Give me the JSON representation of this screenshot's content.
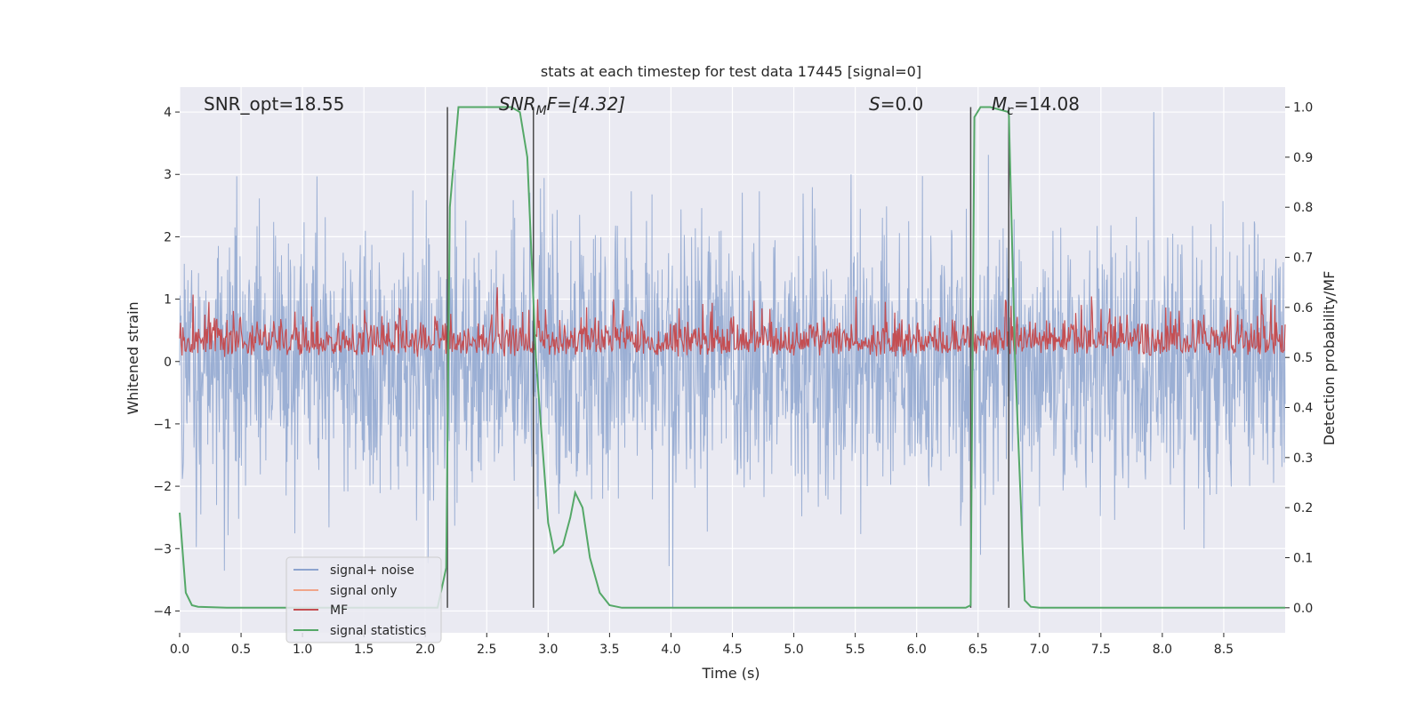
{
  "chart_data": {
    "type": "line",
    "title": "stats at each timestep for test data 17445 [signal=0]",
    "xlabel": "Time (s)",
    "ylabel_left": "Whitened strain",
    "ylabel_right": "Detection probability/MF",
    "xlim": [
      0.0,
      9.0
    ],
    "ylim_left": [
      -4.35,
      4.4
    ],
    "ylim_right": [
      -0.05,
      1.04
    ],
    "x_ticks": [
      0.0,
      0.5,
      1.0,
      1.5,
      2.0,
      2.5,
      3.0,
      3.5,
      4.0,
      4.5,
      5.0,
      5.5,
      6.0,
      6.5,
      7.0,
      7.5,
      8.0,
      8.5
    ],
    "x_tick_labels": [
      "0.0",
      "0.5",
      "1.0",
      "1.5",
      "2.0",
      "2.5",
      "3.0",
      "3.5",
      "4.0",
      "4.5",
      "5.0",
      "5.5",
      "6.0",
      "6.5",
      "7.0",
      "7.5",
      "8.0",
      "8.5"
    ],
    "y_left_ticks": [
      -4,
      -3,
      -2,
      -1,
      0,
      1,
      2,
      3,
      4
    ],
    "y_left_tick_labels": [
      "−4",
      "−3",
      "−2",
      "−1",
      "0",
      "1",
      "2",
      "3",
      "4"
    ],
    "y_right_ticks": [
      0.0,
      0.1,
      0.2,
      0.3,
      0.4,
      0.5,
      0.6,
      0.7,
      0.8,
      0.9,
      1.0
    ],
    "y_right_tick_labels": [
      "0.0",
      "0.1",
      "0.2",
      "0.3",
      "0.4",
      "0.5",
      "0.6",
      "0.7",
      "0.8",
      "0.9",
      "1.0"
    ],
    "annotations": [
      {
        "name": "snr-opt",
        "text": "SNR_opt=18.55"
      },
      {
        "name": "snr-mf",
        "text": "SNR_MF=[4.32]",
        "base": "SNR",
        "sub": "M",
        "rest": "F=[4.32]"
      },
      {
        "name": "s-value",
        "text": "S=0.0",
        "base": "S",
        "rest": "=0.0"
      },
      {
        "name": "mc-value",
        "text": "M_c=14.08",
        "base": "M",
        "sub": "c",
        "rest": "=14.08"
      }
    ],
    "vertical_lines_x": [
      2.18,
      2.88,
      6.44,
      6.75
    ],
    "series": [
      {
        "name": "signal+ noise",
        "color": "#8da4cf",
        "axis": "left",
        "note": "whitened noise, amplitude approx -2.5 to 3 with spikes to 4 and -3.9"
      },
      {
        "name": "signal only",
        "color": "#f0a58a",
        "axis": "left",
        "values": []
      },
      {
        "name": "MF",
        "color": "#c44e52",
        "axis": "right",
        "note": "matched-filter output approx 0.5 to 0.62 on right axis"
      },
      {
        "name": "signal statistics",
        "color": "#55a868",
        "axis": "right",
        "x": [
          0.0,
          0.05,
          0.1,
          0.15,
          0.4,
          2.1,
          2.17,
          2.2,
          2.27,
          2.3,
          2.7,
          2.77,
          2.83,
          2.9,
          3.0,
          3.05,
          3.12,
          3.18,
          3.22,
          3.28,
          3.34,
          3.42,
          3.5,
          3.6,
          6.4,
          6.44,
          6.47,
          6.52,
          6.6,
          6.75,
          6.8,
          6.88,
          6.93,
          7.0,
          9.0
        ],
        "y": [
          0.19,
          0.03,
          0.005,
          0.002,
          0.0,
          0.0,
          0.08,
          0.8,
          1.0,
          1.0,
          1.0,
          0.99,
          0.9,
          0.5,
          0.17,
          0.11,
          0.125,
          0.18,
          0.23,
          0.2,
          0.1,
          0.03,
          0.005,
          0.0,
          0.0,
          0.005,
          0.98,
          1.0,
          1.0,
          0.99,
          0.5,
          0.015,
          0.002,
          0.0,
          0.0
        ]
      }
    ],
    "legend": {
      "position": "lower-left",
      "entries": [
        "signal+ noise",
        "signal only",
        "MF",
        "signal statistics"
      ]
    }
  },
  "colors": {
    "plot_background": "#eaeaf2",
    "grid": "#ffffff",
    "vertical_line": "#4a4a4a"
  }
}
